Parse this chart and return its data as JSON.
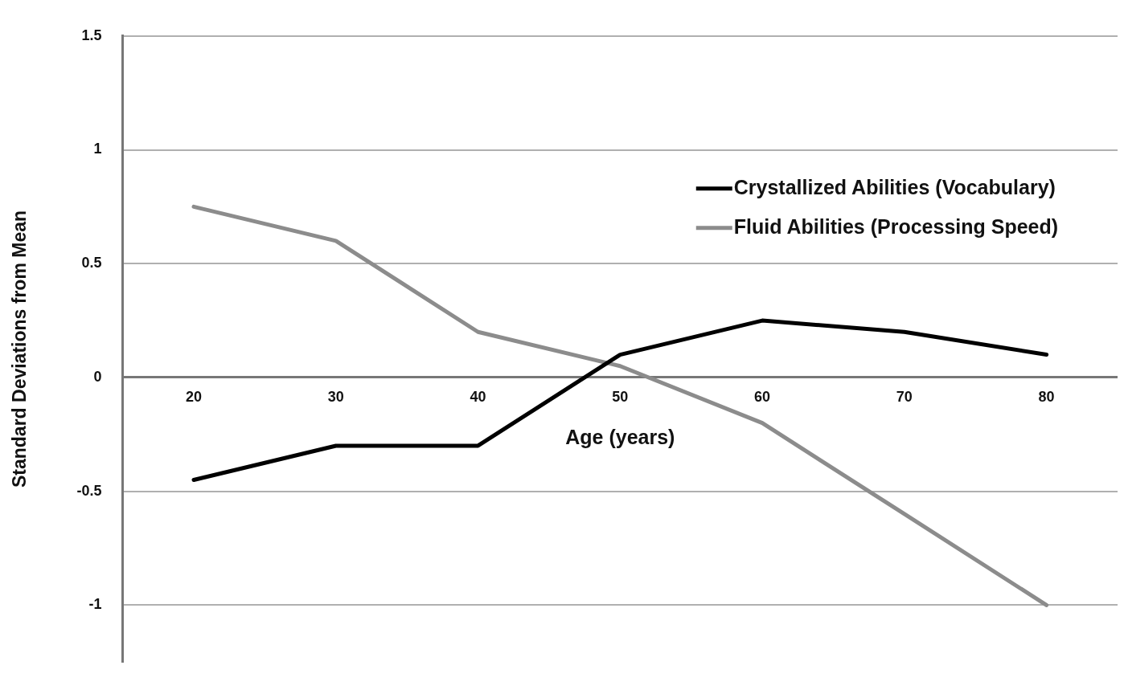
{
  "chart_data": {
    "type": "line",
    "xlabel": "Age (years)",
    "ylabel": "Standard Deviations from Mean",
    "categories": [
      "20",
      "30",
      "40",
      "50",
      "60",
      "70",
      "80"
    ],
    "series": [
      {
        "name": "Crystallized Abilities (Vocabulary)",
        "color": "#000000",
        "values": [
          -0.45,
          -0.3,
          -0.3,
          0.1,
          0.25,
          0.2,
          0.1
        ]
      },
      {
        "name": "Fluid Abilities (Processing Speed)",
        "color": "#8c8c8c",
        "values": [
          0.75,
          0.6,
          0.2,
          0.05,
          -0.2,
          -0.6,
          -1.0
        ]
      }
    ],
    "ylim": [
      -1.25,
      1.5
    ],
    "yticks": [
      1.5,
      1,
      0.5,
      0,
      -0.5,
      -1
    ],
    "grid": "y",
    "legend": "top right",
    "marker": "none",
    "line_style": "solid"
  }
}
